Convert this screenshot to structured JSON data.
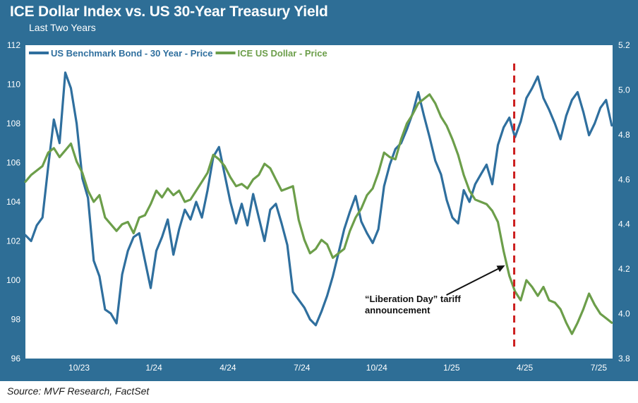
{
  "chart": {
    "title": "ICE Dollar Index vs. US 30-Year Treasury Yield",
    "subtitle": "Last Two Years",
    "source": "Source: MVF Research, FactSet"
  },
  "colors": {
    "frame": "#2e6e96",
    "bond_series": "#2f6f9e",
    "dollar_series": "#6c9e4a",
    "event_line": "#cc1f1f",
    "annotation": "#111111"
  },
  "chart_data": {
    "type": "line",
    "title": "ICE Dollar Index vs. US 30-Year Treasury Yield",
    "subtitle": "Last Two Years",
    "x_ticks": [
      "10/23",
      "1/24",
      "4/24",
      "7/24",
      "10/24",
      "1/25",
      "4/25",
      "7/25"
    ],
    "x_range": [
      "2023-08-10",
      "2025-08-01"
    ],
    "left_axis": {
      "ticks": [
        "96",
        "98",
        "100",
        "102",
        "104",
        "106",
        "108",
        "110",
        "112"
      ],
      "ylim": [
        96,
        112
      ]
    },
    "right_axis": {
      "ticks": [
        "3.8",
        "4.0",
        "4.2",
        "4.4",
        "4.6",
        "4.8",
        "5.0",
        "5.2"
      ],
      "ylim": [
        3.8,
        5.2
      ]
    },
    "legend": {
      "placement": "top-left"
    },
    "grid": false,
    "series": [
      {
        "name": "US Benchmark Bond - 30 Year - Price",
        "axis": "left",
        "color": "#2f6f9e",
        "points": [
          [
            "2023-08-10",
            102.3
          ],
          [
            "2023-08-17",
            102.0
          ],
          [
            "2023-08-24",
            102.8
          ],
          [
            "2023-08-31",
            103.2
          ],
          [
            "2023-09-07",
            105.8
          ],
          [
            "2023-09-14",
            108.2
          ],
          [
            "2023-09-21",
            107.0
          ],
          [
            "2023-09-28",
            110.6
          ],
          [
            "2023-10-05",
            109.8
          ],
          [
            "2023-10-12",
            108.0
          ],
          [
            "2023-10-19",
            105.2
          ],
          [
            "2023-10-26",
            104.2
          ],
          [
            "2023-11-02",
            101.0
          ],
          [
            "2023-11-09",
            100.2
          ],
          [
            "2023-11-16",
            98.5
          ],
          [
            "2023-11-23",
            98.3
          ],
          [
            "2023-11-30",
            97.8
          ],
          [
            "2023-12-07",
            100.3
          ],
          [
            "2023-12-14",
            101.5
          ],
          [
            "2023-12-21",
            102.2
          ],
          [
            "2023-12-28",
            102.4
          ],
          [
            "2024-01-04",
            101.0
          ],
          [
            "2024-01-11",
            99.6
          ],
          [
            "2024-01-18",
            101.5
          ],
          [
            "2024-01-25",
            102.2
          ],
          [
            "2024-02-01",
            103.1
          ],
          [
            "2024-02-08",
            101.3
          ],
          [
            "2024-02-15",
            102.6
          ],
          [
            "2024-02-22",
            103.6
          ],
          [
            "2024-02-29",
            103.1
          ],
          [
            "2024-03-07",
            104.0
          ],
          [
            "2024-03-14",
            103.2
          ],
          [
            "2024-03-21",
            104.6
          ],
          [
            "2024-03-28",
            106.3
          ],
          [
            "2024-04-04",
            106.8
          ],
          [
            "2024-04-11",
            105.4
          ],
          [
            "2024-04-18",
            104.0
          ],
          [
            "2024-04-25",
            102.9
          ],
          [
            "2024-05-02",
            103.9
          ],
          [
            "2024-05-09",
            102.8
          ],
          [
            "2024-05-16",
            104.4
          ],
          [
            "2024-05-23",
            103.2
          ],
          [
            "2024-05-30",
            102.0
          ],
          [
            "2024-06-06",
            103.6
          ],
          [
            "2024-06-13",
            103.9
          ],
          [
            "2024-06-20",
            102.9
          ],
          [
            "2024-06-27",
            101.8
          ],
          [
            "2024-07-04",
            99.4
          ],
          [
            "2024-07-11",
            99.0
          ],
          [
            "2024-07-18",
            98.6
          ],
          [
            "2024-07-25",
            98.0
          ],
          [
            "2024-08-01",
            97.7
          ],
          [
            "2024-08-08",
            98.4
          ],
          [
            "2024-08-15",
            99.2
          ],
          [
            "2024-08-22",
            100.2
          ],
          [
            "2024-08-29",
            101.4
          ],
          [
            "2024-09-05",
            102.6
          ],
          [
            "2024-09-12",
            103.5
          ],
          [
            "2024-09-19",
            104.3
          ],
          [
            "2024-09-26",
            103.0
          ],
          [
            "2024-10-03",
            102.4
          ],
          [
            "2024-10-10",
            101.9
          ],
          [
            "2024-10-17",
            102.6
          ],
          [
            "2024-10-24",
            104.8
          ],
          [
            "2024-10-31",
            105.9
          ],
          [
            "2024-11-07",
            106.7
          ],
          [
            "2024-11-14",
            107.0
          ],
          [
            "2024-11-21",
            107.7
          ],
          [
            "2024-11-28",
            108.5
          ],
          [
            "2024-12-05",
            109.6
          ],
          [
            "2024-12-12",
            108.4
          ],
          [
            "2024-12-19",
            107.3
          ],
          [
            "2024-12-26",
            106.1
          ],
          [
            "2025-01-02",
            105.4
          ],
          [
            "2025-01-09",
            104.1
          ],
          [
            "2025-01-16",
            103.2
          ],
          [
            "2025-01-23",
            102.9
          ],
          [
            "2025-01-30",
            104.6
          ],
          [
            "2025-02-06",
            104.0
          ],
          [
            "2025-02-13",
            104.9
          ],
          [
            "2025-02-20",
            105.4
          ],
          [
            "2025-02-27",
            105.9
          ],
          [
            "2025-03-06",
            104.9
          ],
          [
            "2025-03-13",
            106.9
          ],
          [
            "2025-03-20",
            107.8
          ],
          [
            "2025-03-27",
            108.3
          ],
          [
            "2025-04-03",
            107.3
          ],
          [
            "2025-04-10",
            108.1
          ],
          [
            "2025-04-17",
            109.3
          ],
          [
            "2025-04-24",
            109.8
          ],
          [
            "2025-05-01",
            110.4
          ],
          [
            "2025-05-08",
            109.3
          ],
          [
            "2025-05-15",
            108.7
          ],
          [
            "2025-05-22",
            108.0
          ],
          [
            "2025-05-29",
            107.2
          ],
          [
            "2025-06-05",
            108.4
          ],
          [
            "2025-06-12",
            109.2
          ],
          [
            "2025-06-19",
            109.6
          ],
          [
            "2025-06-26",
            108.6
          ],
          [
            "2025-07-03",
            107.4
          ],
          [
            "2025-07-10",
            108.0
          ],
          [
            "2025-07-17",
            108.8
          ],
          [
            "2025-07-24",
            109.2
          ],
          [
            "2025-07-31",
            107.9
          ]
        ]
      },
      {
        "name": "ICE US Dollar - Price",
        "axis": "right",
        "color": "#6c9e4a",
        "points": [
          [
            "2023-08-10",
            4.59
          ],
          [
            "2023-08-17",
            4.62
          ],
          [
            "2023-08-24",
            4.64
          ],
          [
            "2023-08-31",
            4.66
          ],
          [
            "2023-09-07",
            4.72
          ],
          [
            "2023-09-14",
            4.74
          ],
          [
            "2023-09-21",
            4.7
          ],
          [
            "2023-09-28",
            4.73
          ],
          [
            "2023-10-05",
            4.76
          ],
          [
            "2023-10-12",
            4.68
          ],
          [
            "2023-10-19",
            4.63
          ],
          [
            "2023-10-26",
            4.55
          ],
          [
            "2023-11-02",
            4.5
          ],
          [
            "2023-11-09",
            4.53
          ],
          [
            "2023-11-16",
            4.43
          ],
          [
            "2023-11-23",
            4.4
          ],
          [
            "2023-11-30",
            4.37
          ],
          [
            "2023-12-07",
            4.4
          ],
          [
            "2023-12-14",
            4.41
          ],
          [
            "2023-12-21",
            4.36
          ],
          [
            "2023-12-28",
            4.43
          ],
          [
            "2024-01-04",
            4.44
          ],
          [
            "2024-01-11",
            4.49
          ],
          [
            "2024-01-18",
            4.55
          ],
          [
            "2024-01-25",
            4.52
          ],
          [
            "2024-02-01",
            4.56
          ],
          [
            "2024-02-08",
            4.53
          ],
          [
            "2024-02-15",
            4.55
          ],
          [
            "2024-02-22",
            4.5
          ],
          [
            "2024-02-29",
            4.51
          ],
          [
            "2024-03-07",
            4.55
          ],
          [
            "2024-03-14",
            4.59
          ],
          [
            "2024-03-21",
            4.63
          ],
          [
            "2024-03-28",
            4.71
          ],
          [
            "2024-04-04",
            4.69
          ],
          [
            "2024-04-11",
            4.66
          ],
          [
            "2024-04-18",
            4.61
          ],
          [
            "2024-04-25",
            4.57
          ],
          [
            "2024-05-02",
            4.58
          ],
          [
            "2024-05-09",
            4.56
          ],
          [
            "2024-05-16",
            4.6
          ],
          [
            "2024-05-23",
            4.62
          ],
          [
            "2024-05-30",
            4.67
          ],
          [
            "2024-06-06",
            4.65
          ],
          [
            "2024-06-13",
            4.6
          ],
          [
            "2024-06-20",
            4.55
          ],
          [
            "2024-06-27",
            4.56
          ],
          [
            "2024-07-04",
            4.57
          ],
          [
            "2024-07-11",
            4.42
          ],
          [
            "2024-07-18",
            4.33
          ],
          [
            "2024-07-25",
            4.27
          ],
          [
            "2024-08-01",
            4.29
          ],
          [
            "2024-08-08",
            4.33
          ],
          [
            "2024-08-15",
            4.31
          ],
          [
            "2024-08-22",
            4.25
          ],
          [
            "2024-08-29",
            4.27
          ],
          [
            "2024-09-05",
            4.29
          ],
          [
            "2024-09-12",
            4.37
          ],
          [
            "2024-09-19",
            4.43
          ],
          [
            "2024-09-26",
            4.47
          ],
          [
            "2024-10-03",
            4.53
          ],
          [
            "2024-10-10",
            4.56
          ],
          [
            "2024-10-17",
            4.63
          ],
          [
            "2024-10-24",
            4.72
          ],
          [
            "2024-10-31",
            4.7
          ],
          [
            "2024-11-07",
            4.69
          ],
          [
            "2024-11-14",
            4.78
          ],
          [
            "2024-11-21",
            4.85
          ],
          [
            "2024-11-28",
            4.89
          ],
          [
            "2024-12-05",
            4.94
          ],
          [
            "2024-12-12",
            4.96
          ],
          [
            "2024-12-19",
            4.98
          ],
          [
            "2024-12-26",
            4.94
          ],
          [
            "2025-01-02",
            4.88
          ],
          [
            "2025-01-09",
            4.84
          ],
          [
            "2025-01-16",
            4.78
          ],
          [
            "2025-01-23",
            4.71
          ],
          [
            "2025-01-30",
            4.62
          ],
          [
            "2025-02-06",
            4.55
          ],
          [
            "2025-02-13",
            4.51
          ],
          [
            "2025-02-20",
            4.5
          ],
          [
            "2025-02-27",
            4.49
          ],
          [
            "2025-03-06",
            4.46
          ],
          [
            "2025-03-13",
            4.41
          ],
          [
            "2025-03-20",
            4.28
          ],
          [
            "2025-03-27",
            4.17
          ],
          [
            "2025-04-03",
            4.1
          ],
          [
            "2025-04-10",
            4.06
          ],
          [
            "2025-04-17",
            4.15
          ],
          [
            "2025-04-24",
            4.12
          ],
          [
            "2025-05-01",
            4.08
          ],
          [
            "2025-05-08",
            4.12
          ],
          [
            "2025-05-15",
            4.06
          ],
          [
            "2025-05-22",
            4.05
          ],
          [
            "2025-05-29",
            4.02
          ],
          [
            "2025-06-05",
            3.96
          ],
          [
            "2025-06-12",
            3.91
          ],
          [
            "2025-06-19",
            3.96
          ],
          [
            "2025-06-26",
            4.02
          ],
          [
            "2025-07-03",
            4.09
          ],
          [
            "2025-07-10",
            4.04
          ],
          [
            "2025-07-17",
            4.0
          ],
          [
            "2025-07-24",
            3.98
          ],
          [
            "2025-07-31",
            3.96
          ]
        ]
      }
    ],
    "annotations": [
      {
        "text_lines": [
          "“Liberation Day” tariff",
          "announcement"
        ],
        "date": "2025-04-02",
        "style": "dashed-vertical-line-with-arrow"
      }
    ]
  }
}
